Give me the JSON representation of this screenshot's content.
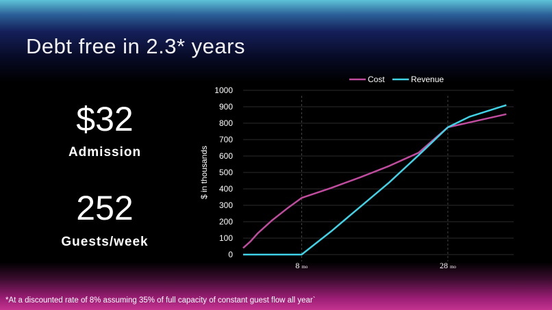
{
  "slide": {
    "title": "Debt free in 2.3* years",
    "stats": [
      {
        "value": "$32",
        "label": "Admission"
      },
      {
        "value": "252",
        "label": "Guests/week"
      }
    ],
    "footnote": "*At a discounted rate of 8% assuming 35% of full capacity of constant guest flow all year`"
  },
  "colors": {
    "cost": "#c04b9f",
    "revenue": "#3fd3e8",
    "grid": "#3a3a3a",
    "axis_text": "#ffffff"
  },
  "chart_data": {
    "type": "line",
    "ylabel": "$ in thousands",
    "xlabel": "",
    "ylim": [
      0,
      1000
    ],
    "yticks": [
      0,
      100,
      200,
      300,
      400,
      500,
      600,
      700,
      800,
      900,
      1000
    ],
    "xlim": [
      0,
      37
    ],
    "xtick_labels": [
      {
        "x": 8,
        "label": "8",
        "unit": "mo"
      },
      {
        "x": 28,
        "label": "28",
        "unit": "mo"
      }
    ],
    "vertical_markers": [
      8,
      28
    ],
    "grid": true,
    "legend_position": "top",
    "series": [
      {
        "name": "Cost",
        "color": "#c04b9f",
        "points": [
          [
            0,
            40
          ],
          [
            1,
            80
          ],
          [
            2,
            130
          ],
          [
            4,
            210
          ],
          [
            6,
            280
          ],
          [
            8,
            345
          ],
          [
            12,
            405
          ],
          [
            16,
            470
          ],
          [
            20,
            540
          ],
          [
            24,
            620
          ],
          [
            28,
            775
          ],
          [
            31,
            805
          ],
          [
            36,
            855
          ]
        ]
      },
      {
        "name": "Revenue",
        "color": "#3fd3e8",
        "points": [
          [
            0,
            0
          ],
          [
            8,
            0
          ],
          [
            12,
            140
          ],
          [
            16,
            290
          ],
          [
            20,
            440
          ],
          [
            24,
            605
          ],
          [
            28,
            775
          ],
          [
            31,
            840
          ],
          [
            36,
            910
          ]
        ]
      }
    ]
  }
}
